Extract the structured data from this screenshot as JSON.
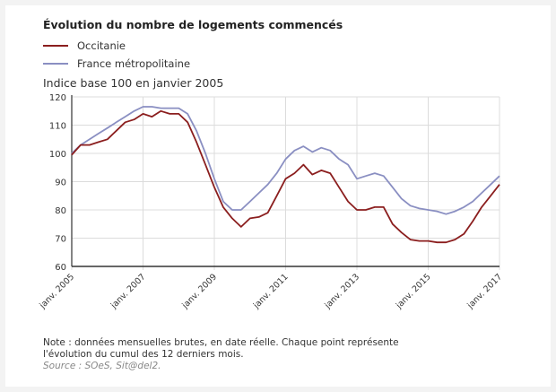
{
  "chart_data": {
    "type": "line",
    "title": "Évolution du nombre de logements commencés",
    "ylabel": "Indice base 100 en janvier 2005",
    "xlabel": "",
    "ylim": [
      60,
      120
    ],
    "xlim": [
      2005,
      2017
    ],
    "yticks": [
      60,
      70,
      80,
      90,
      100,
      110,
      120
    ],
    "xticks": [
      {
        "value": 2005,
        "label": "janv. 2005"
      },
      {
        "value": 2007,
        "label": "janv. 2007"
      },
      {
        "value": 2009,
        "label": "janv. 2009"
      },
      {
        "value": 2011,
        "label": "janv. 2011"
      },
      {
        "value": 2013,
        "label": "janv. 2013"
      },
      {
        "value": 2015,
        "label": "janv. 2015"
      },
      {
        "value": 2017,
        "label": "janv. 2017"
      }
    ],
    "grid": true,
    "legend_position": "top-left",
    "x_step": 0.25,
    "series": [
      {
        "name": "Occitanie",
        "color": "#8b1e1e",
        "values": [
          99.5,
          103,
          103,
          104,
          105,
          108,
          111,
          112,
          114,
          113,
          115,
          114,
          114,
          111,
          104,
          96,
          88,
          81,
          77,
          74,
          77,
          77.5,
          79,
          85,
          91,
          93,
          96,
          92.5,
          94,
          93,
          88,
          83,
          80,
          80,
          81,
          81,
          75,
          72,
          69.5,
          69,
          69,
          68.5,
          68.5,
          69.5,
          71.5,
          76,
          81,
          85,
          89
        ]
      },
      {
        "name": "France métropolitaine",
        "color": "#8a8fc2",
        "values": [
          100,
          103,
          105,
          107,
          109,
          111,
          113,
          115,
          116.5,
          116.5,
          116,
          116,
          116,
          114,
          108,
          100,
          91,
          83,
          80,
          80,
          83,
          86,
          89,
          93,
          98,
          101,
          102.5,
          100.5,
          102,
          101,
          98,
          96,
          91,
          92,
          93,
          92,
          88,
          84,
          81.5,
          80.5,
          80,
          79.5,
          78.5,
          79.5,
          81,
          83,
          86,
          89,
          92
        ]
      }
    ]
  },
  "note": {
    "line1": "Note : données mensuelles brutes, en date réelle. Chaque point représente",
    "line2": "l'évolution du cumul des 12 derniers mois.",
    "source": "Source : SOeS, Sit@del2."
  }
}
